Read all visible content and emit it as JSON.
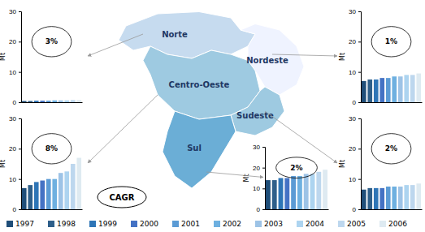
{
  "chart_data": [
    {
      "type": "bar",
      "title": "Norte",
      "categories": [
        "1997",
        "1998",
        "1999",
        "2000",
        "2001",
        "2002",
        "2003",
        "2004",
        "2005",
        "2006"
      ],
      "values": [
        0.4,
        0.4,
        0.5,
        0.5,
        0.5,
        0.6,
        0.6,
        0.6,
        0.7,
        0.7
      ],
      "colors": [
        "#1F4E79",
        "#2E5F8A",
        "#2E75B6",
        "#4472C4",
        "#5B9BD5",
        "#6EB0E0",
        "#9DC3E6",
        "#ADD4F0",
        "#BDD7EE",
        "#DEEAF1"
      ],
      "ylabel": "Mt",
      "ylim": [
        0,
        30
      ],
      "yticks": [
        0,
        10,
        20,
        30
      ],
      "tick_labels": "y",
      "legend": "bottom",
      "annotations": [
        "3%"
      ]
    },
    {
      "type": "bar",
      "title": "Nordeste",
      "categories": [
        "1997",
        "1998",
        "1999",
        "2000",
        "2001",
        "2002",
        "2003",
        "2004",
        "2005",
        "2006"
      ],
      "values": [
        7,
        7.5,
        7.5,
        8,
        8,
        8.5,
        8.5,
        9,
        9,
        9.5
      ],
      "colors": [
        "#1F4E79",
        "#2E5F8A",
        "#2E75B6",
        "#4472C4",
        "#5B9BD5",
        "#6EB0E0",
        "#9DC3E6",
        "#ADD4F0",
        "#BDD7EE",
        "#DEEAF1"
      ],
      "ylabel": "Mt",
      "ylim": [
        0,
        30
      ],
      "yticks": [
        0,
        10,
        20,
        30
      ],
      "tick_labels": "y",
      "annotations": [
        "1%"
      ]
    },
    {
      "type": "bar",
      "title": "Centro-Oeste",
      "categories": [
        "1997",
        "1998",
        "1999",
        "2000",
        "2001",
        "2002",
        "2003",
        "2004",
        "2005",
        "2006"
      ],
      "values": [
        7,
        8,
        9,
        9.5,
        10,
        10,
        12,
        12.5,
        15,
        17
      ],
      "colors": [
        "#1F4E79",
        "#2E5F8A",
        "#2E75B6",
        "#4472C4",
        "#5B9BD5",
        "#6EB0E0",
        "#9DC3E6",
        "#ADD4F0",
        "#BDD7EE",
        "#DEEAF1"
      ],
      "ylabel": "Mt",
      "ylim": [
        0,
        30
      ],
      "yticks": [
        0,
        10,
        20,
        30
      ],
      "tick_labels": "y",
      "annotations": [
        "8%"
      ]
    },
    {
      "type": "bar",
      "title": "Sudeste",
      "categories": [
        "1997",
        "1998",
        "1999",
        "2000",
        "2001",
        "2002",
        "2003",
        "2004",
        "2005",
        "2006"
      ],
      "values": [
        6.5,
        7,
        7,
        7,
        7.5,
        7.5,
        7.5,
        8,
        8,
        8.5
      ],
      "colors": [
        "#1F4E79",
        "#2E5F8A",
        "#2E75B6",
        "#4472C4",
        "#5B9BD5",
        "#6EB0E0",
        "#9DC3E6",
        "#ADD4F0",
        "#BDD7EE",
        "#DEEAF1"
      ],
      "ylabel": "Mt",
      "ylim": [
        0,
        30
      ],
      "yticks": [
        0,
        10,
        20,
        30
      ],
      "tick_labels": "y",
      "annotations": [
        "2%"
      ]
    },
    {
      "type": "bar",
      "title": "Sul",
      "categories": [
        "1997",
        "1998",
        "1999",
        "2000",
        "2001",
        "2002",
        "2003",
        "2004",
        "2005",
        "2006"
      ],
      "values": [
        14,
        14,
        15,
        15,
        16,
        16,
        17,
        17,
        18,
        19
      ],
      "colors": [
        "#1F4E79",
        "#2E5F8A",
        "#2E75B6",
        "#4472C4",
        "#5B9BD5",
        "#6EB0E0",
        "#9DC3E6",
        "#ADD4F0",
        "#BDD7EE",
        "#DEEAF1"
      ],
      "ylabel": "Mt",
      "ylim": [
        0,
        30
      ],
      "yticks": [
        0,
        10,
        20,
        30
      ],
      "tick_labels": "y",
      "annotations": [
        "2%"
      ]
    }
  ],
  "annotations": [
    "CAGR"
  ]
}
